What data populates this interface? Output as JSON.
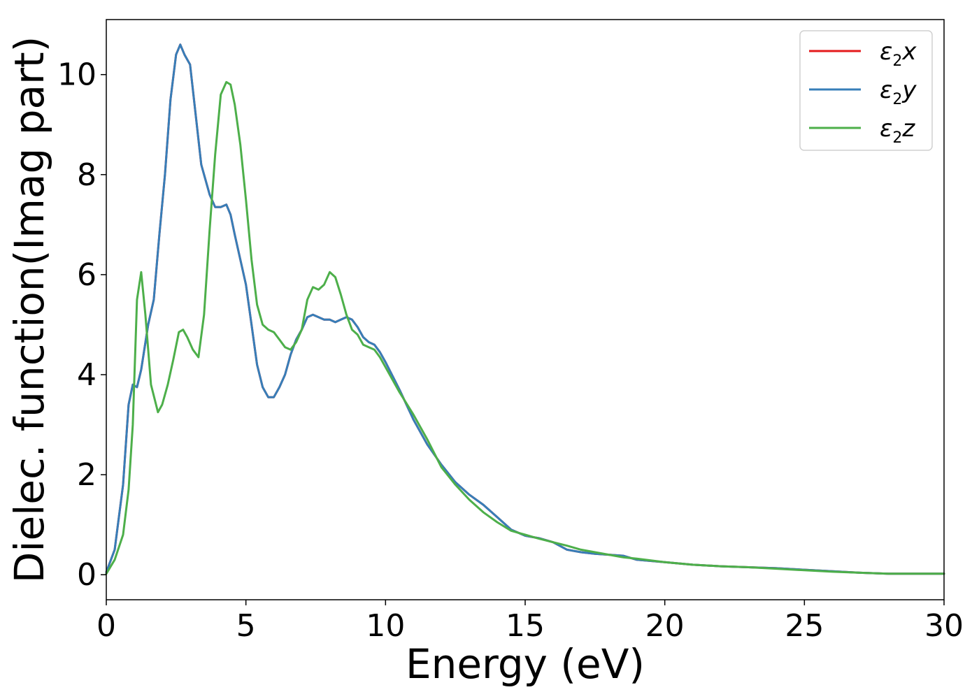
{
  "chart_data": {
    "type": "line",
    "title": "",
    "xlabel": "Energy (eV)",
    "ylabel": "Dielec. function(Imag part)",
    "xlim": [
      0,
      30
    ],
    "ylim": [
      -0.5,
      11.1
    ],
    "xticks": [
      0,
      5,
      10,
      15,
      20,
      25,
      30
    ],
    "yticks": [
      0,
      2,
      4,
      6,
      8,
      10
    ],
    "grid": false,
    "legend_position": "top-right",
    "series": [
      {
        "name": "ε2x",
        "color": "#e41a1c",
        "x": [
          0,
          0.3,
          0.6,
          0.8,
          0.95,
          1.1,
          1.25,
          1.5,
          1.7,
          1.9,
          2.1,
          2.3,
          2.5,
          2.65,
          2.8,
          3.0,
          3.2,
          3.4,
          3.7,
          3.9,
          4.1,
          4.3,
          4.45,
          4.6,
          4.8,
          5.0,
          5.2,
          5.4,
          5.6,
          5.8,
          6.0,
          6.2,
          6.4,
          6.6,
          6.8,
          7.0,
          7.2,
          7.4,
          7.6,
          7.8,
          8.0,
          8.2,
          8.4,
          8.6,
          8.8,
          9.0,
          9.2,
          9.4,
          9.6,
          9.8,
          10.0,
          10.5,
          11.0,
          11.5,
          12.0,
          12.5,
          13.0,
          13.5,
          14.0,
          14.5,
          15.0,
          15.5,
          16.0,
          16.5,
          17.0,
          17.5,
          18.0,
          18.5,
          19.0,
          20.0,
          21.0,
          22.0,
          23.0,
          24.0,
          25.0,
          26.0,
          27.0,
          28.0,
          29.0,
          30.0
        ],
        "y": [
          0.05,
          0.5,
          1.8,
          3.4,
          3.8,
          3.75,
          4.1,
          5.0,
          5.5,
          6.8,
          8.0,
          9.5,
          10.4,
          10.6,
          10.4,
          10.2,
          9.2,
          8.2,
          7.6,
          7.35,
          7.35,
          7.4,
          7.2,
          6.8,
          6.3,
          5.8,
          5.0,
          4.2,
          3.75,
          3.55,
          3.55,
          3.75,
          4.0,
          4.4,
          4.7,
          4.9,
          5.15,
          5.2,
          5.15,
          5.1,
          5.1,
          5.05,
          5.1,
          5.15,
          5.1,
          4.95,
          4.75,
          4.65,
          4.6,
          4.45,
          4.25,
          3.7,
          3.1,
          2.6,
          2.2,
          1.85,
          1.6,
          1.4,
          1.15,
          0.9,
          0.78,
          0.73,
          0.65,
          0.5,
          0.45,
          0.42,
          0.4,
          0.38,
          0.3,
          0.25,
          0.2,
          0.17,
          0.15,
          0.13,
          0.1,
          0.07,
          0.04,
          0.02,
          0.02,
          0.02
        ]
      },
      {
        "name": "ε2y",
        "color": "#377eb8",
        "x": [
          0,
          0.3,
          0.6,
          0.8,
          0.95,
          1.1,
          1.25,
          1.5,
          1.7,
          1.9,
          2.1,
          2.3,
          2.5,
          2.65,
          2.8,
          3.0,
          3.2,
          3.4,
          3.7,
          3.9,
          4.1,
          4.3,
          4.45,
          4.6,
          4.8,
          5.0,
          5.2,
          5.4,
          5.6,
          5.8,
          6.0,
          6.2,
          6.4,
          6.6,
          6.8,
          7.0,
          7.2,
          7.4,
          7.6,
          7.8,
          8.0,
          8.2,
          8.4,
          8.6,
          8.8,
          9.0,
          9.2,
          9.4,
          9.6,
          9.8,
          10.0,
          10.5,
          11.0,
          11.5,
          12.0,
          12.5,
          13.0,
          13.5,
          14.0,
          14.5,
          15.0,
          15.5,
          16.0,
          16.5,
          17.0,
          17.5,
          18.0,
          18.5,
          19.0,
          20.0,
          21.0,
          22.0,
          23.0,
          24.0,
          25.0,
          26.0,
          27.0,
          28.0,
          29.0,
          30.0
        ],
        "y": [
          0.05,
          0.5,
          1.8,
          3.4,
          3.8,
          3.75,
          4.1,
          5.0,
          5.5,
          6.8,
          8.0,
          9.5,
          10.4,
          10.6,
          10.4,
          10.2,
          9.2,
          8.2,
          7.6,
          7.35,
          7.35,
          7.4,
          7.2,
          6.8,
          6.3,
          5.8,
          5.0,
          4.2,
          3.75,
          3.55,
          3.55,
          3.75,
          4.0,
          4.4,
          4.7,
          4.9,
          5.15,
          5.2,
          5.15,
          5.1,
          5.1,
          5.05,
          5.1,
          5.15,
          5.1,
          4.95,
          4.75,
          4.65,
          4.6,
          4.45,
          4.25,
          3.7,
          3.1,
          2.6,
          2.2,
          1.85,
          1.6,
          1.4,
          1.15,
          0.9,
          0.78,
          0.73,
          0.65,
          0.5,
          0.45,
          0.42,
          0.4,
          0.38,
          0.3,
          0.25,
          0.2,
          0.17,
          0.15,
          0.13,
          0.1,
          0.07,
          0.04,
          0.02,
          0.02,
          0.02
        ]
      },
      {
        "name": "ε2z",
        "color": "#4daf4a",
        "x": [
          0,
          0.3,
          0.6,
          0.8,
          0.95,
          1.1,
          1.25,
          1.4,
          1.6,
          1.85,
          2.0,
          2.2,
          2.4,
          2.6,
          2.75,
          2.9,
          3.1,
          3.3,
          3.5,
          3.7,
          3.9,
          4.1,
          4.3,
          4.45,
          4.6,
          4.8,
          5.0,
          5.2,
          5.4,
          5.6,
          5.8,
          6.0,
          6.2,
          6.4,
          6.6,
          6.8,
          7.0,
          7.2,
          7.4,
          7.6,
          7.8,
          8.0,
          8.2,
          8.4,
          8.6,
          8.8,
          9.0,
          9.2,
          9.4,
          9.6,
          9.8,
          10.0,
          10.5,
          11.0,
          11.5,
          12.0,
          12.5,
          13.0,
          13.5,
          14.0,
          14.5,
          15.0,
          15.5,
          16.0,
          16.5,
          17.0,
          17.5,
          18.0,
          18.5,
          19.0,
          20.0,
          21.0,
          22.0,
          23.0,
          24.0,
          25.0,
          26.0,
          27.0,
          28.0,
          29.0,
          30.0
        ],
        "y": [
          0.02,
          0.3,
          0.8,
          1.7,
          3.0,
          5.5,
          6.05,
          5.2,
          3.8,
          3.25,
          3.4,
          3.8,
          4.3,
          4.85,
          4.9,
          4.75,
          4.5,
          4.35,
          5.2,
          6.9,
          8.4,
          9.6,
          9.85,
          9.8,
          9.4,
          8.6,
          7.5,
          6.3,
          5.4,
          5.0,
          4.9,
          4.85,
          4.7,
          4.55,
          4.5,
          4.65,
          4.9,
          5.5,
          5.75,
          5.7,
          5.8,
          6.05,
          5.95,
          5.6,
          5.2,
          4.9,
          4.8,
          4.6,
          4.55,
          4.5,
          4.35,
          4.15,
          3.65,
          3.2,
          2.7,
          2.15,
          1.8,
          1.5,
          1.25,
          1.05,
          0.88,
          0.8,
          0.72,
          0.65,
          0.58,
          0.5,
          0.45,
          0.4,
          0.35,
          0.32,
          0.25,
          0.2,
          0.17,
          0.15,
          0.12,
          0.09,
          0.06,
          0.04,
          0.02,
          0.02,
          0.02
        ]
      }
    ]
  }
}
